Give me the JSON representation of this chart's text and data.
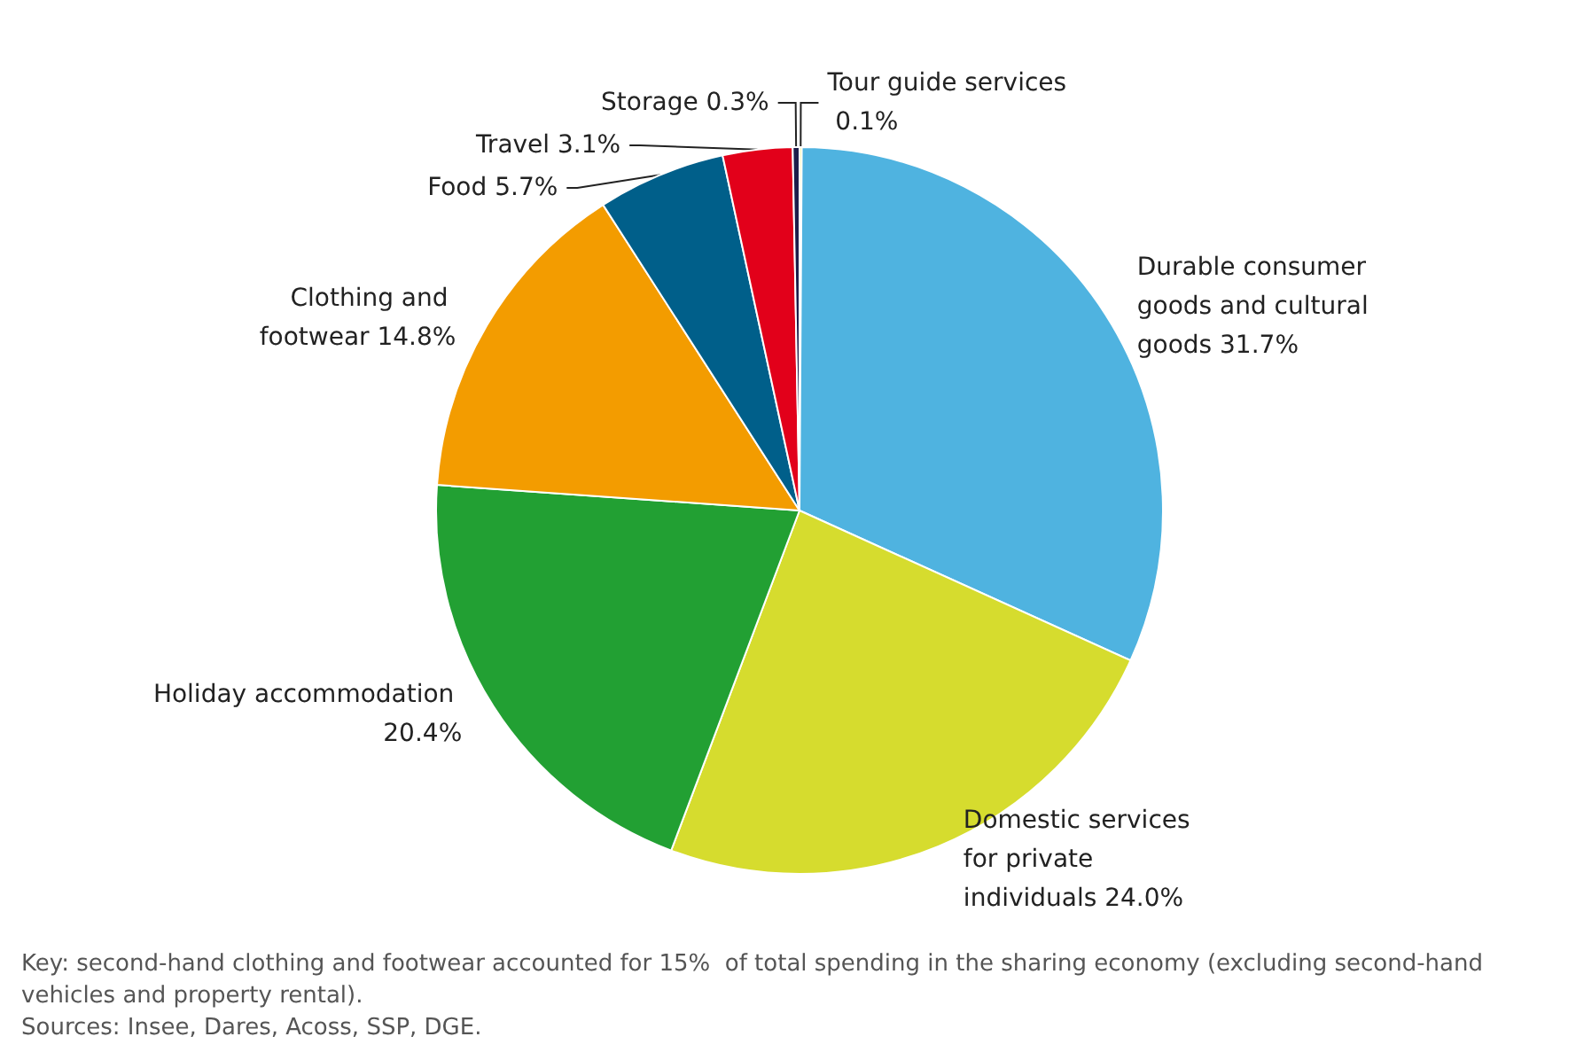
{
  "chart_data": {
    "type": "pie",
    "categories": [
      "Tour guide services",
      "Durable consumer goods and cultural goods",
      "Domestic services for private individuals",
      "Holiday accommodation",
      "Clothing and footwear",
      "Food",
      "Travel",
      "Storage"
    ],
    "values": [
      0.1,
      31.7,
      24.0,
      20.4,
      14.8,
      5.7,
      3.1,
      0.3
    ],
    "value_labels": [
      "0.1%",
      "31.7%",
      "24.0%",
      "20.4%",
      "14.8%",
      "5.7%",
      "3.1%",
      "0.3%"
    ],
    "colors": [
      "#f2e500",
      "#4fb3e0",
      "#d6dc2e",
      "#22a033",
      "#f39c00",
      "#005f8a",
      "#e2001a",
      "#1d1d4b"
    ],
    "legend": false,
    "annotations": [
      "Key: second-hand clothing and footwear accounted for 15%  of total spending in the sharing economy (excluding second-hand vehicles and property rental).",
      "Sources: Insee, Dares, Acoss, SSP, DGE."
    ]
  }
}
